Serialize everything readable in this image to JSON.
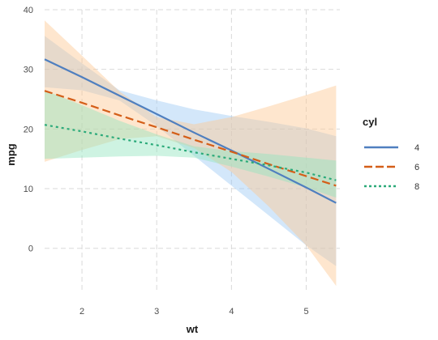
{
  "chart_data": {
    "type": "line",
    "title": "",
    "xlabel": "wt",
    "ylabel": "mpg",
    "xlim": [
      1.5,
      5.45
    ],
    "ylim": [
      -7.5,
      40
    ],
    "x_ticks": [
      2,
      3,
      4,
      5
    ],
    "y_ticks": [
      0,
      10,
      20,
      30,
      40
    ],
    "x_tick_labels": [
      "2",
      "3",
      "4",
      "5"
    ],
    "y_tick_labels": [
      "0",
      "10",
      "20",
      "30",
      "40"
    ],
    "grid": true,
    "legend": {
      "title": "cyl",
      "placement": "right"
    },
    "series": [
      {
        "name": "4",
        "color": "#4F7FBF",
        "line_style": "solid",
        "band_color": "#9EC9F5",
        "x": [
          1.5,
          2.0,
          2.5,
          3.0,
          3.5,
          4.0,
          4.5,
          5.0,
          5.4
        ],
        "y": [
          31.7,
          28.7,
          25.6,
          22.5,
          19.4,
          16.4,
          13.3,
          10.2,
          7.6
        ],
        "lower": [
          27.0,
          26.5,
          24.8,
          20.5,
          15.5,
          10.5,
          5.5,
          0.5,
          -3.0
        ],
        "upper": [
          35.6,
          31.0,
          26.5,
          24.8,
          23.3,
          22.2,
          21.2,
          20.1,
          18.8
        ]
      },
      {
        "name": "6",
        "color": "#D45E18",
        "line_style": "dashed",
        "band_color": "#FDC792",
        "x": [
          1.5,
          2.0,
          2.5,
          3.0,
          3.5,
          4.0,
          4.5,
          5.0,
          5.4
        ],
        "y": [
          26.4,
          24.4,
          22.3,
          20.3,
          18.2,
          16.2,
          14.1,
          12.1,
          10.5
        ],
        "lower": [
          14.5,
          16.5,
          18.3,
          18.8,
          16.8,
          12.8,
          7.0,
          0.5,
          -6.3
        ],
        "upper": [
          38.2,
          32.3,
          26.3,
          22.0,
          20.8,
          22.0,
          23.8,
          25.7,
          27.3
        ]
      },
      {
        "name": "8",
        "color": "#2BAA7A",
        "line_style": "dotted",
        "band_color": "#93E4BF",
        "x": [
          1.5,
          2.0,
          2.5,
          3.0,
          3.5,
          4.0,
          4.5,
          5.0,
          5.4
        ],
        "y": [
          20.7,
          19.6,
          18.4,
          17.3,
          16.1,
          15.0,
          13.9,
          12.7,
          11.4
        ],
        "lower": [
          15.0,
          15.2,
          15.4,
          15.5,
          15.2,
          13.7,
          12.0,
          10.2,
          8.5
        ],
        "upper": [
          26.5,
          24.0,
          21.4,
          19.1,
          17.1,
          16.3,
          15.8,
          15.2,
          14.7
        ]
      }
    ]
  }
}
